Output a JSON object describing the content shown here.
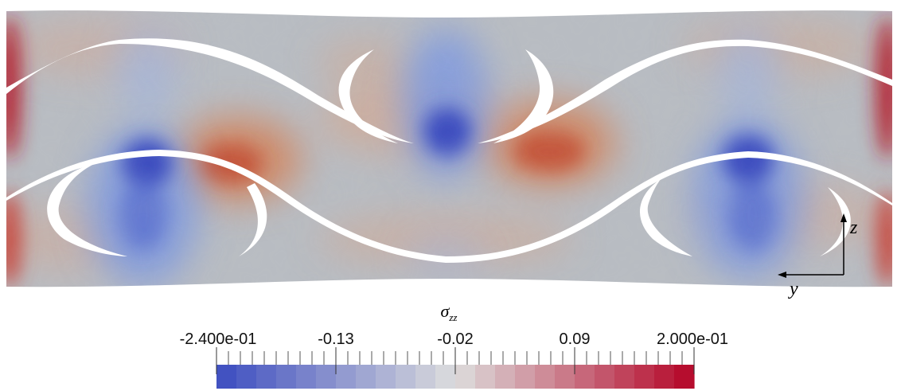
{
  "field": {
    "symbol": "σ",
    "subscript": "zz"
  },
  "axes_triad": {
    "horizontal_label": "y",
    "vertical_label": "z"
  },
  "colorbar": {
    "colormap": "cool-to-warm",
    "min": -0.24,
    "max": 0.2,
    "num_bins": 24,
    "tick_labels": [
      "-2.400e-01",
      "-0.13",
      "-0.02",
      "0.09",
      "2.000e-01"
    ],
    "tick_values": [
      -0.24,
      -0.13,
      -0.02,
      0.09,
      0.2
    ],
    "colors": [
      "#3b4cc0",
      "#dddddd",
      "#b40426"
    ]
  }
}
